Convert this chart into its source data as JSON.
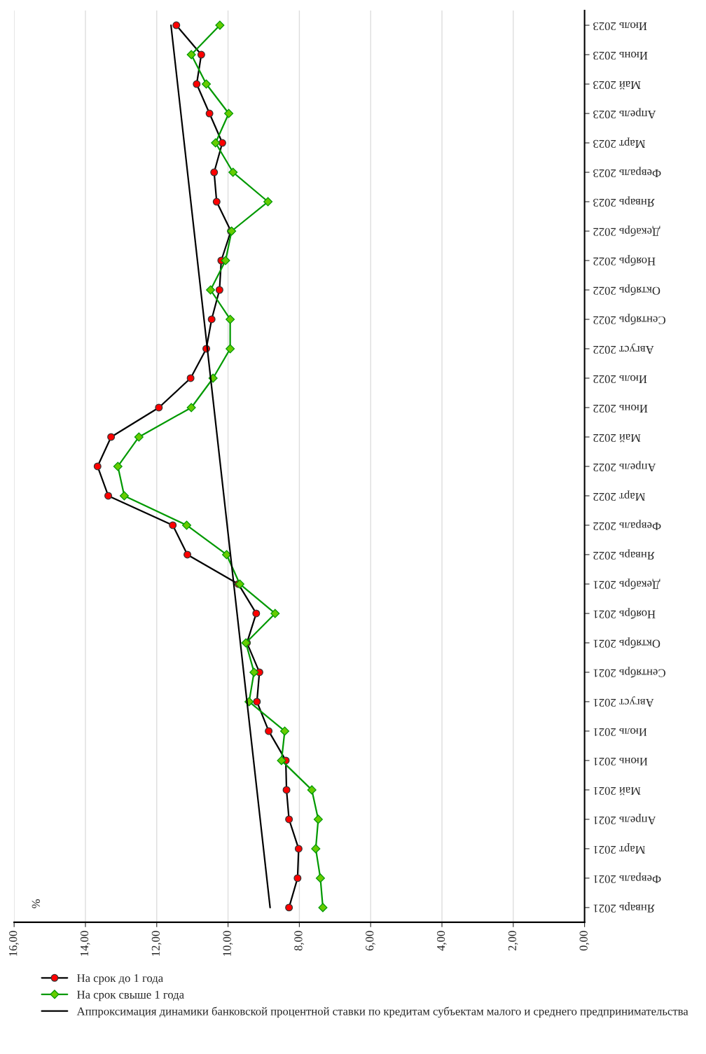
{
  "chart_data": {
    "type": "line",
    "orientation": "horizontal",
    "ylabel": "%",
    "categories": [
      "Июль 2023",
      "Июнь 2023",
      "Май 2023",
      "Апрель 2023",
      "Март 2023",
      "Февраль 2023",
      "Январь 2023",
      "Декабрь 2022",
      "Ноябрь 2022",
      "Октябрь 2022",
      "Сентябрь 2022",
      "Август 2022",
      "Июль 2022",
      "Июнь 2022",
      "Май 2022",
      "Апрель 2022",
      "Март 2022",
      "Февраль 2022",
      "Январь 2022",
      "Декабрь 2021",
      "Ноябрь 2021",
      "Октябрь 2021",
      "Сентябрь 2021",
      "Август 2021",
      "Июль 2021",
      "Июнь 2021",
      "Май 2021",
      "Апрель 2021",
      "Март 2021",
      "Февраль 2021",
      "Январь 2021"
    ],
    "series": [
      {
        "name": "На срок до 1 года",
        "color": "#ff0000",
        "marker": "circle",
        "values": [
          11.45,
          10.75,
          10.88,
          10.52,
          10.16,
          10.39,
          10.32,
          9.92,
          10.19,
          10.24,
          10.46,
          10.61,
          11.05,
          11.94,
          13.28,
          13.66,
          13.36,
          11.55,
          11.14,
          9.71,
          9.21,
          9.47,
          9.12,
          9.19,
          8.86,
          8.38,
          8.36,
          8.29,
          8.02,
          8.05,
          8.29
        ]
      },
      {
        "name": "На срок свыше 1 года",
        "color": "#66cc00",
        "marker": "diamond",
        "values": [
          10.23,
          11.03,
          10.61,
          9.98,
          10.35,
          9.86,
          8.88,
          9.9,
          10.07,
          10.49,
          9.94,
          9.94,
          10.42,
          11.03,
          12.5,
          13.09,
          12.91,
          11.16,
          10.04,
          9.67,
          8.68,
          9.5,
          9.27,
          9.41,
          8.41,
          8.5,
          7.65,
          7.47,
          7.54,
          7.41,
          7.34
        ]
      },
      {
        "name": "Аппроксимация динамики банковской процентной ставки по кредитам субъектам малого и среднего предпринимательства",
        "color": "#000000",
        "marker": "none",
        "values": [
          11.6,
          null,
          null,
          null,
          null,
          null,
          null,
          null,
          null,
          null,
          null,
          null,
          null,
          null,
          null,
          null,
          null,
          null,
          null,
          null,
          null,
          null,
          null,
          null,
          null,
          null,
          null,
          null,
          null,
          null,
          8.82
        ]
      }
    ],
    "xlim": [
      16,
      0
    ],
    "xticks": [
      {
        "value": 16,
        "label": "16,00"
      },
      {
        "value": 14,
        "label": "14,00"
      },
      {
        "value": 12,
        "label": "12,00"
      },
      {
        "value": 10,
        "label": "10,00"
      },
      {
        "value": 8,
        "label": "8,00"
      },
      {
        "value": 6,
        "label": "6,00"
      },
      {
        "value": 4,
        "label": "4,00"
      },
      {
        "value": 2,
        "label": "2,00"
      },
      {
        "value": 0,
        "label": "0,00"
      }
    ],
    "grid": "x",
    "legend": "bottom"
  }
}
